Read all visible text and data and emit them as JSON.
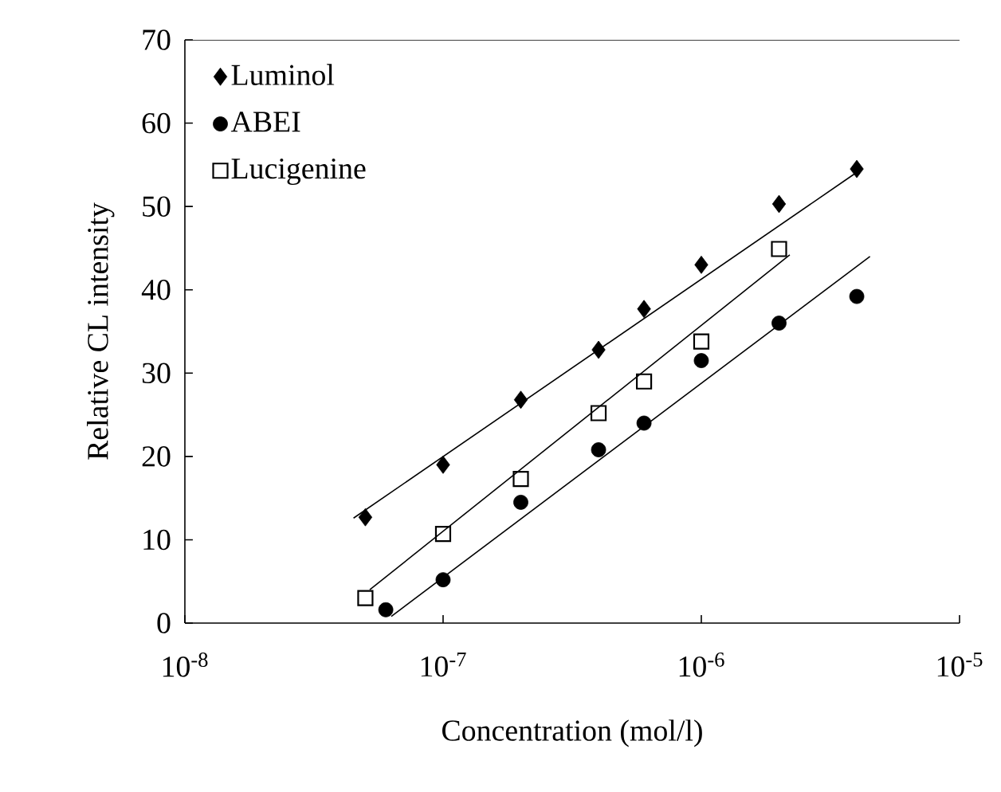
{
  "chart_data": {
    "type": "scatter",
    "xlabel": "Concentration (mol/l)",
    "ylabel": "Relative CL intensity",
    "log": "x",
    "xlim": [
      1e-08,
      1e-05
    ],
    "ylim": [
      0,
      70
    ],
    "xticks": [
      {
        "value": 1e-08,
        "label": "10$^{-8}$"
      },
      {
        "value": 1e-07,
        "label": "10$^{-7}$"
      },
      {
        "value": 1e-06,
        "label": "10$^{-6}$"
      },
      {
        "value": 1e-05,
        "label": "10$^{-5}$"
      }
    ],
    "yticks": [
      0,
      10,
      20,
      30,
      40,
      50,
      60,
      70
    ],
    "legend": "top left",
    "grid": false,
    "series": [
      {
        "name": "Luminol",
        "marker": "diamond",
        "color": "#000000",
        "x": [
          5e-08,
          1e-07,
          2e-07,
          4e-07,
          6e-07,
          1e-06,
          2e-06,
          4e-06
        ],
        "values": [
          12.7,
          19,
          26.8,
          32.8,
          37.7,
          43,
          50.3,
          54.5
        ]
      },
      {
        "name": "ABEI",
        "marker": "circle",
        "color": "#000000",
        "x": [
          6e-08,
          1e-07,
          2e-07,
          4e-07,
          6e-07,
          1e-06,
          2e-06,
          4e-06
        ],
        "values": [
          1.6,
          5.2,
          14.5,
          20.8,
          24,
          31.5,
          36,
          39.2
        ]
      },
      {
        "name": "Lucigenine",
        "marker": "square",
        "color": "#000000",
        "x": [
          5e-08,
          1e-07,
          2e-07,
          4e-07,
          6e-07,
          1e-06,
          2e-06
        ],
        "values": [
          3,
          10.7,
          17.3,
          25.2,
          29,
          33.8,
          44.9
        ]
      },
      {
        "type": "line",
        "marker": "none",
        "color": "#000000",
        "x": [
          4.5e-08,
          4e-06
        ],
        "values": [
          12.6,
          54.1
        ]
      },
      {
        "type": "line",
        "marker": "none",
        "color": "#000000",
        "x": [
          5.2e-08,
          2.2e-06
        ],
        "values": [
          4,
          44.2
        ]
      },
      {
        "type": "line",
        "marker": "none",
        "color": "#000000",
        "x": [
          6.3e-08,
          4.5e-06
        ],
        "values": [
          0.8,
          44
        ]
      }
    ]
  }
}
